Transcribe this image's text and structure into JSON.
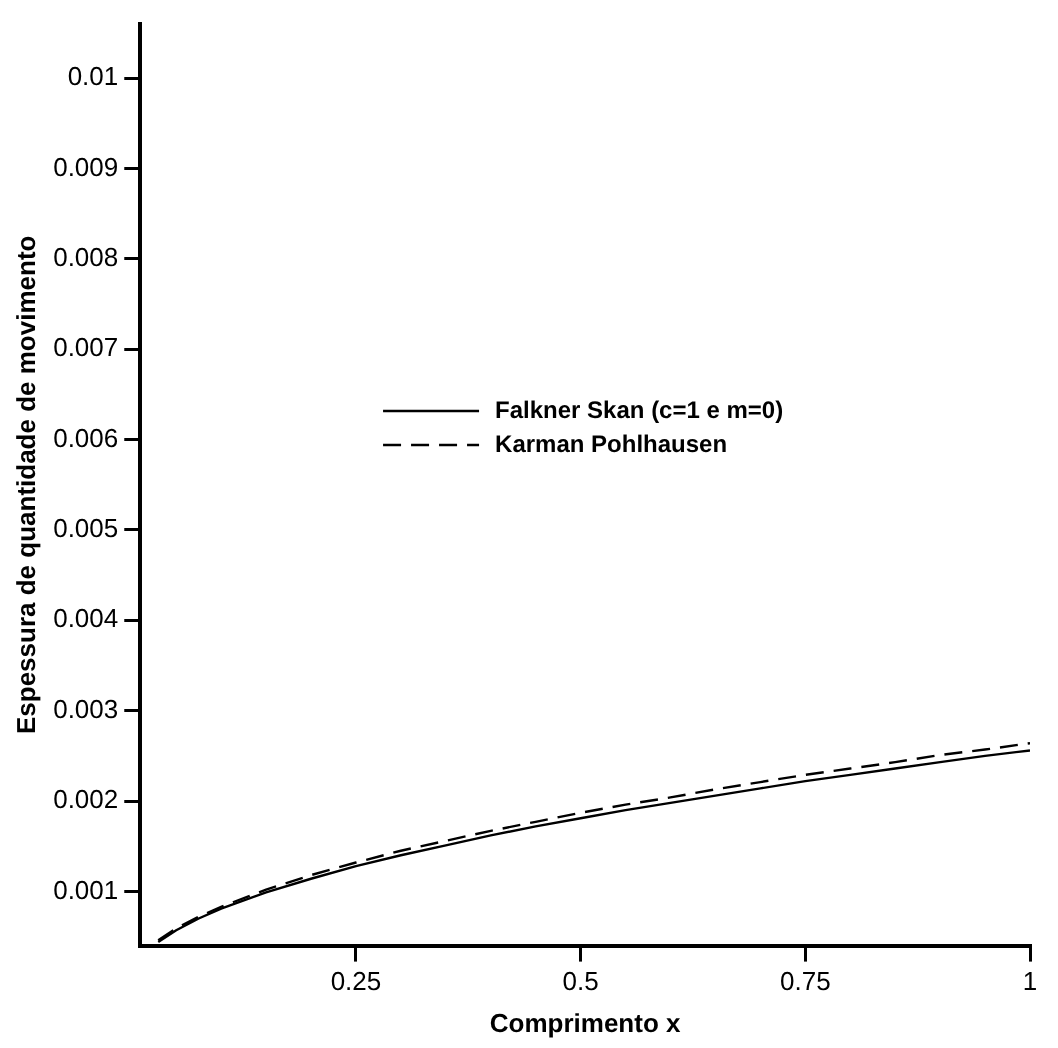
{
  "chart_data": {
    "type": "line",
    "xlabel": "Comprimento x",
    "ylabel": "Espessura de quantidade de movimento",
    "x": [
      0.03,
      0.05,
      0.075,
      0.1,
      0.15,
      0.2,
      0.25,
      0.3,
      0.35,
      0.4,
      0.45,
      0.5,
      0.55,
      0.6,
      0.65,
      0.7,
      0.75,
      0.8,
      0.85,
      0.9,
      0.95,
      1
    ],
    "series": [
      {
        "name": "Falkner Skan (c=1 e m=0)",
        "color": "#000000",
        "line_style": "solid",
        "values": [
          0.00044,
          0.00057,
          0.0007,
          0.00081,
          0.00099,
          0.00114,
          0.00128,
          0.0014,
          0.00151,
          0.00162,
          0.00172,
          0.00181,
          0.0019,
          0.00198,
          0.00206,
          0.00214,
          0.00222,
          0.00229,
          0.00236,
          0.00243,
          0.0025,
          0.00256
        ]
      },
      {
        "name": "Karman Pohlhausen",
        "color": "#000000",
        "line_style": "dashed",
        "values": [
          0.00046,
          0.00059,
          0.00072,
          0.00083,
          0.00102,
          0.00118,
          0.00132,
          0.00145,
          0.00156,
          0.00167,
          0.00177,
          0.00187,
          0.00196,
          0.00204,
          0.00213,
          0.00221,
          0.00229,
          0.00236,
          0.00243,
          0.00251,
          0.00257,
          0.00264
        ]
      }
    ],
    "xlim": [
      0.01,
      1
    ],
    "xticks": [
      0.25,
      0.5,
      0.75,
      1
    ],
    "ylim": [
      0.0004,
      0.0106
    ],
    "yticks": [
      0.001,
      0.002,
      0.003,
      0.004,
      0.005,
      0.006,
      0.007,
      0.008,
      0.009,
      0.01
    ],
    "grid": false,
    "legend": "center",
    "marker": "none"
  }
}
